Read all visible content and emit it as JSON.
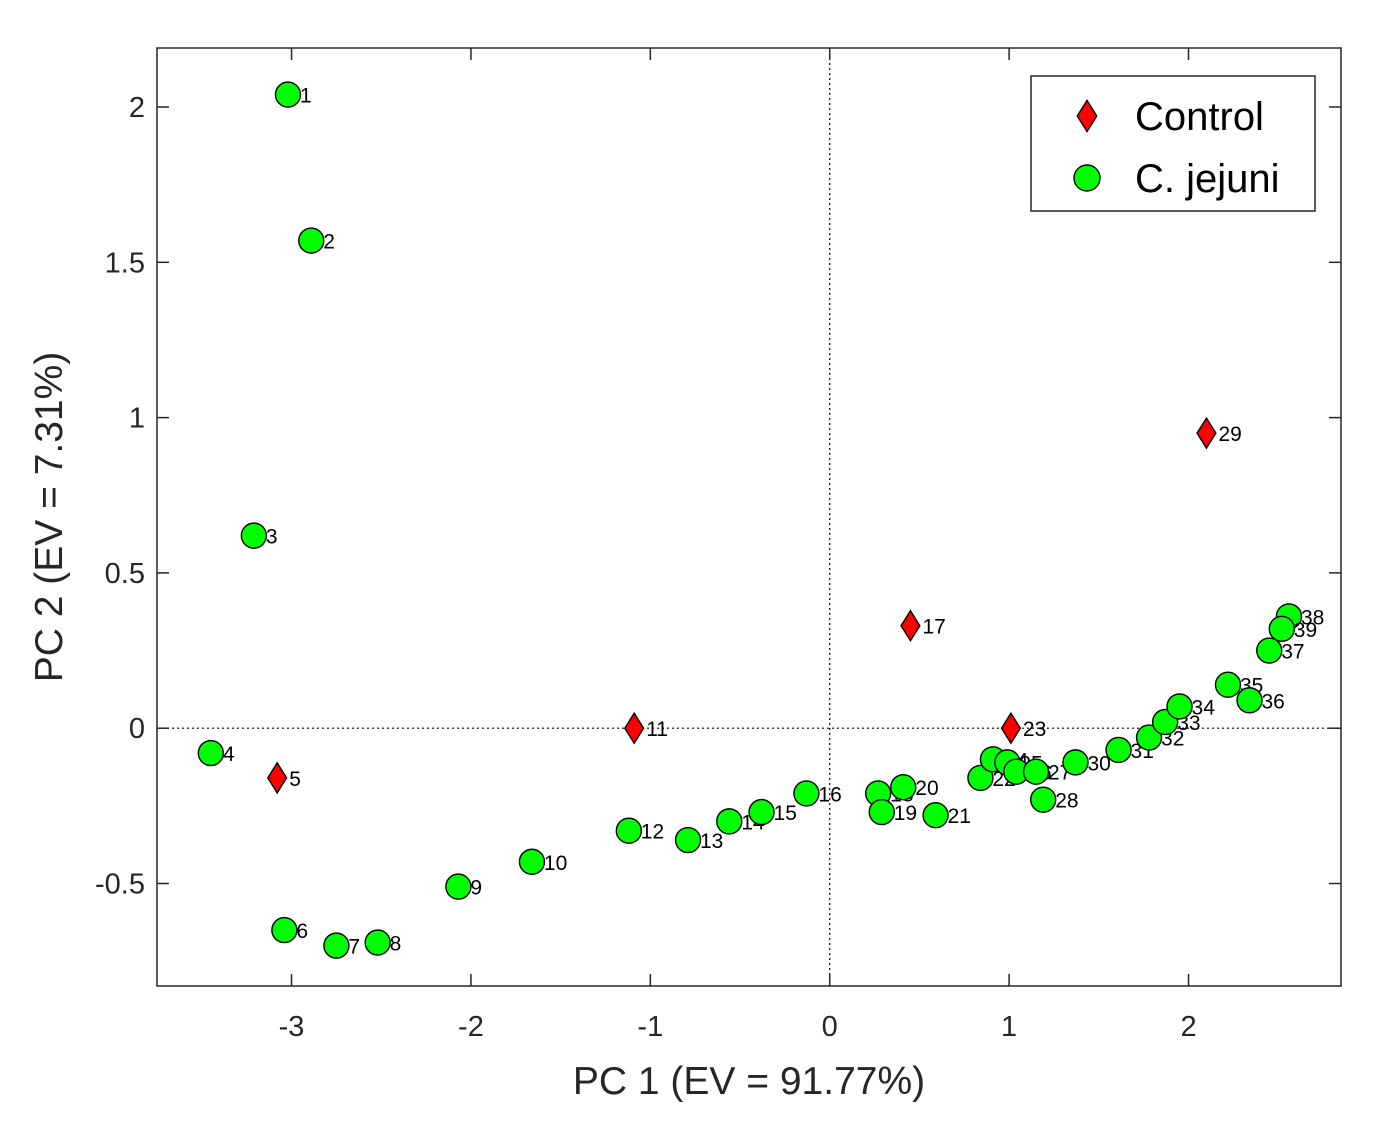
{
  "chart_data": {
    "type": "scatter",
    "title": "",
    "xlabel": "PC 1 (EV = 91.77%)",
    "ylabel": "PC 2 (EV = 7.31%)",
    "xlim": [
      -3.75,
      2.85
    ],
    "ylim": [
      -0.83,
      2.19
    ],
    "xticks": [
      -3,
      -2,
      -1,
      0,
      1,
      2
    ],
    "yticks": [
      -0.5,
      0,
      0.5,
      1,
      1.5,
      2
    ],
    "xtick_labels": [
      "-3",
      "-2",
      "-1",
      "0",
      "1",
      "2"
    ],
    "ytick_labels": [
      "-0.5",
      "0",
      "0.5",
      "1",
      "1.5",
      "2"
    ],
    "reference_lines": {
      "x": 0,
      "y": 0,
      "style": "dotted"
    },
    "grid": false,
    "legend": {
      "position": "top-right"
    },
    "series": [
      {
        "name": "Control",
        "marker": "diamond",
        "color": "#ff0000",
        "points": [
          {
            "label": "5",
            "x": -3.08,
            "y": -0.16
          },
          {
            "label": "11",
            "x": -1.09,
            "y": 0.0
          },
          {
            "label": "17",
            "x": 0.45,
            "y": 0.33
          },
          {
            "label": "23",
            "x": 1.01,
            "y": 0.0
          },
          {
            "label": "29",
            "x": 2.1,
            "y": 0.95
          }
        ]
      },
      {
        "name": "C. jejuni",
        "marker": "circle",
        "color": "#00ff00",
        "points": [
          {
            "label": "1",
            "x": -3.02,
            "y": 2.04
          },
          {
            "label": "2",
            "x": -2.89,
            "y": 1.57
          },
          {
            "label": "3",
            "x": -3.21,
            "y": 0.62
          },
          {
            "label": "4",
            "x": -3.45,
            "y": -0.08
          },
          {
            "label": "6",
            "x": -3.04,
            "y": -0.65
          },
          {
            "label": "7",
            "x": -2.75,
            "y": -0.7
          },
          {
            "label": "8",
            "x": -2.52,
            "y": -0.69
          },
          {
            "label": "9",
            "x": -2.07,
            "y": -0.51
          },
          {
            "label": "10",
            "x": -1.66,
            "y": -0.43
          },
          {
            "label": "12",
            "x": -1.12,
            "y": -0.33
          },
          {
            "label": "13",
            "x": -0.79,
            "y": -0.36
          },
          {
            "label": "14",
            "x": -0.56,
            "y": -0.3
          },
          {
            "label": "15",
            "x": -0.38,
            "y": -0.27
          },
          {
            "label": "16",
            "x": -0.13,
            "y": -0.21
          },
          {
            "label": "18",
            "x": 0.27,
            "y": -0.21
          },
          {
            "label": "19",
            "x": 0.29,
            "y": -0.27
          },
          {
            "label": "20",
            "x": 0.41,
            "y": -0.19
          },
          {
            "label": "21",
            "x": 0.59,
            "y": -0.28
          },
          {
            "label": "22",
            "x": 0.84,
            "y": -0.16
          },
          {
            "label": "24",
            "x": 0.91,
            "y": -0.1
          },
          {
            "label": "25",
            "x": 0.99,
            "y": -0.11
          },
          {
            "label": "26",
            "x": 1.04,
            "y": -0.14
          },
          {
            "label": "27",
            "x": 1.15,
            "y": -0.14
          },
          {
            "label": "28",
            "x": 1.19,
            "y": -0.23
          },
          {
            "label": "30",
            "x": 1.37,
            "y": -0.11
          },
          {
            "label": "31",
            "x": 1.61,
            "y": -0.07
          },
          {
            "label": "32",
            "x": 1.78,
            "y": -0.03
          },
          {
            "label": "33",
            "x": 1.87,
            "y": 0.02
          },
          {
            "label": "34",
            "x": 1.95,
            "y": 0.07
          },
          {
            "label": "35",
            "x": 2.22,
            "y": 0.14
          },
          {
            "label": "36",
            "x": 2.34,
            "y": 0.09
          },
          {
            "label": "37",
            "x": 2.45,
            "y": 0.25
          },
          {
            "label": "38",
            "x": 2.56,
            "y": 0.36
          },
          {
            "label": "39",
            "x": 2.52,
            "y": 0.32
          }
        ]
      }
    ]
  }
}
